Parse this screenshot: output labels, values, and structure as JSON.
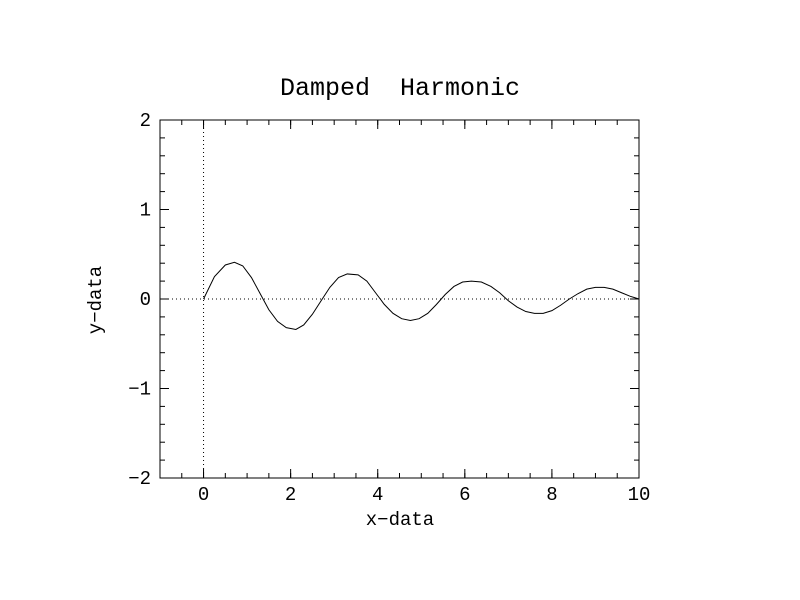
{
  "chart_data": {
    "type": "line",
    "title": "Damped  Harmonic",
    "xlabel": "x−data",
    "ylabel": "y−data",
    "xlim": [
      -1,
      10
    ],
    "ylim": [
      -2,
      2
    ],
    "x_ticks": [
      0,
      2,
      4,
      6,
      8,
      10
    ],
    "x_tick_labels": [
      "0",
      "2",
      "4",
      "6",
      "8",
      "10"
    ],
    "y_ticks": [
      -2,
      -1,
      0,
      1,
      2
    ],
    "y_tick_labels": [
      "−2",
      "−1",
      "0",
      "1",
      "2"
    ],
    "x_minor_step": 0.5,
    "y_minor_step": 0.2,
    "grid": false,
    "reference_lines": {
      "x_zero": "dotted",
      "y_zero": "dotted"
    },
    "series": [
      {
        "color": "#000000",
        "x": [
          0,
          0.25,
          0.5,
          0.71,
          0.9,
          1.1,
          1.3,
          1.5,
          1.7,
          1.9,
          2.12,
          2.3,
          2.5,
          2.7,
          2.9,
          3.1,
          3.3,
          3.55,
          3.75,
          3.95,
          4.15,
          4.35,
          4.55,
          4.75,
          4.95,
          5.15,
          5.35,
          5.55,
          5.75,
          5.95,
          6.15,
          6.38,
          6.6,
          6.8,
          7.0,
          7.2,
          7.4,
          7.6,
          7.8,
          8.0,
          8.2,
          8.4,
          8.6,
          8.8,
          9.0,
          9.2,
          9.4,
          9.6,
          9.8,
          10.0
        ],
        "y": [
          0.0,
          0.25,
          0.38,
          0.41,
          0.37,
          0.24,
          0.06,
          -0.12,
          -0.25,
          -0.32,
          -0.34,
          -0.29,
          -0.17,
          -0.02,
          0.13,
          0.24,
          0.28,
          0.27,
          0.2,
          0.07,
          -0.06,
          -0.16,
          -0.22,
          -0.24,
          -0.22,
          -0.16,
          -0.06,
          0.05,
          0.14,
          0.19,
          0.2,
          0.19,
          0.14,
          0.07,
          -0.02,
          -0.09,
          -0.14,
          -0.16,
          -0.16,
          -0.13,
          -0.07,
          0.0,
          0.06,
          0.11,
          0.13,
          0.13,
          0.11,
          0.07,
          0.03,
          0.0
        ]
      }
    ]
  }
}
